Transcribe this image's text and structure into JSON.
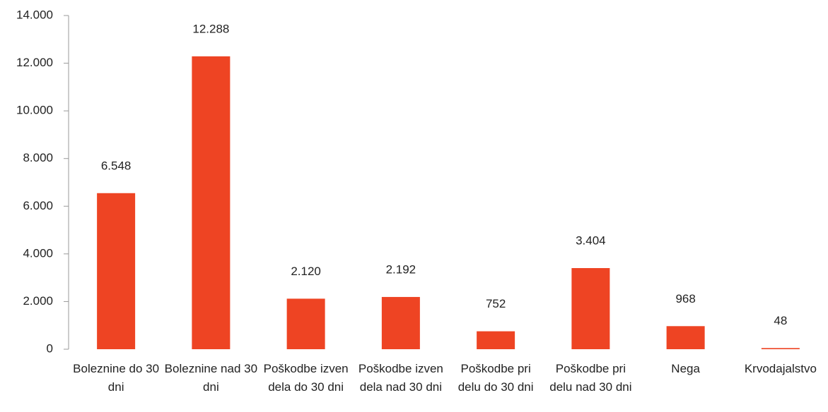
{
  "chart_data": {
    "type": "bar",
    "categories": [
      "Boleznine do 30 dni",
      "Boleznine nad 30 dni",
      "Poškodbe izven dela do 30 dni",
      "Poškodbe izven dela nad 30 dni",
      "Poškodbe pri delu do 30 dni",
      "Poškodbe pri delu nad 30 dni",
      "Nega",
      "Krvodajalstvo"
    ],
    "values": [
      6548,
      12288,
      2120,
      2192,
      752,
      3404,
      968,
      48
    ],
    "value_labels": [
      "6.548",
      "12.288",
      "2.120",
      "2.192",
      "752",
      "3.404",
      "968",
      "48"
    ],
    "color": "#ee4423",
    "ylim": [
      0,
      14000
    ],
    "yticks": [
      0,
      {
        "value": 2000,
        "label": "2.000"
      },
      {
        "value": 4000,
        "label": "4.000"
      },
      {
        "value": 6000,
        "label": "6.000"
      },
      {
        "value": 8000,
        "label": "8.000"
      },
      {
        "value": 10000,
        "label": "10.000"
      },
      {
        "value": 12000,
        "label": "12.000"
      },
      {
        "value": 14000,
        "label": "14.000"
      }
    ]
  }
}
